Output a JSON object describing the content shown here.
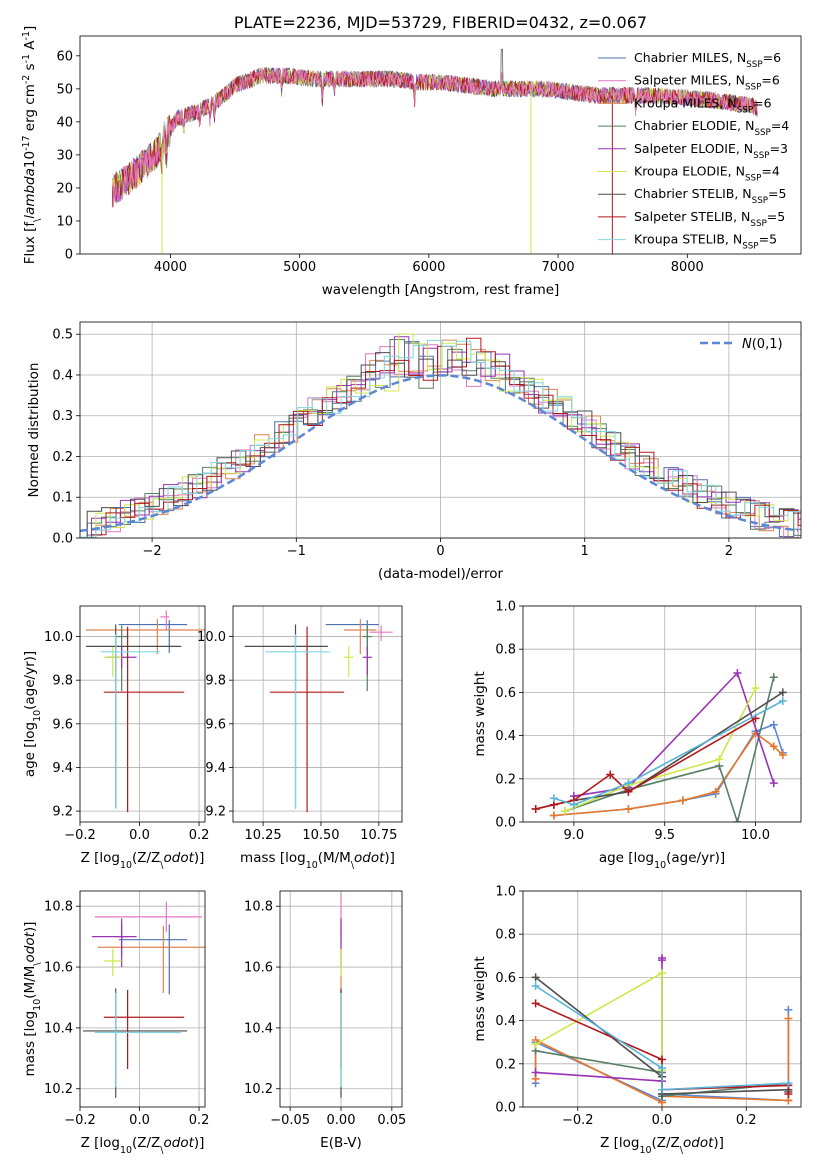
{
  "colors": {
    "Chabrier MILES": "#4c72b0",
    "Salpeter MILES": "#e377c2",
    "Kroupa MILES": "#dd8452",
    "Chabrier ELODIE": "#55825f",
    "Salpeter ELODIE": "#9a32b5",
    "Kroupa ELODIE": "#cde84a",
    "Chabrier STELIB": "#4d4d4d",
    "Salpeter STELIB": "#b2181b",
    "Kroupa STELIB": "#7fd6e0",
    "mc_blue": "#5b87d6",
    "mc_orange": "#e8772a",
    "mc_green": "#587f66",
    "mc_cyan": "#59b3d9"
  },
  "chart_data": [
    {
      "id": "spectrum",
      "type": "line",
      "title": "PLATE=2236, MJD=53729, FIBERID=0432, z=0.067",
      "xlabel": "wavelength [Angstrom, rest frame]",
      "ylabel": "Flux [f$_\\lambda$10$^{-17}$ erg cm$^{-2}$ s$^{-1}$ A$^{-1}$]",
      "xlim": [
        3300,
        8880
      ],
      "ylim": [
        0,
        66
      ],
      "xticks": [
        "4000",
        "5000",
        "6000",
        "7000",
        "8000"
      ],
      "yticks": [
        "0",
        "10",
        "20",
        "30",
        "40",
        "50",
        "60"
      ],
      "grid": false,
      "legend_position": "top-right",
      "continuum": {
        "x": [
          3550,
          3650,
          3800,
          3880,
          3950,
          4050,
          4200,
          4350,
          4500,
          4700,
          4900,
          5100,
          5300,
          5500,
          5700,
          5900,
          6100,
          6300,
          6500,
          6700,
          6900,
          7100,
          7300,
          7500,
          7700,
          7900,
          8100,
          8300,
          8500,
          8540
        ],
        "y": [
          19,
          22,
          27,
          30,
          35,
          41,
          43,
          46,
          51,
          54,
          54,
          53,
          53,
          53,
          53,
          52,
          52,
          51,
          50,
          50,
          50,
          49,
          48,
          48,
          48,
          47.5,
          47,
          46,
          45,
          44
        ]
      },
      "series": [
        {
          "name": "Chabrier MILES, N$_{SSP}$=6"
        },
        {
          "name": "Salpeter MILES, N$_{SSP}$=6"
        },
        {
          "name": "Kroupa MILES, N$_{SSP}$=6"
        },
        {
          "name": "Chabrier ELODIE, N$_{SSP}$=4"
        },
        {
          "name": "Salpeter ELODIE, N$_{SSP}$=3"
        },
        {
          "name": "Kroupa ELODIE, N$_{SSP}$=4"
        },
        {
          "name": "Chabrier STELIB, N$_{SSP}$=5"
        },
        {
          "name": "Salpeter STELIB, N$_{SSP}$=5"
        },
        {
          "name": "Kroupa STELIB, N$_{SSP}$=5"
        }
      ]
    },
    {
      "id": "residuals",
      "type": "histogram",
      "xlabel": "(data-model)/error",
      "ylabel": "Normed distribution",
      "xlim": [
        -2.5,
        2.5
      ],
      "ylim": [
        0,
        0.53
      ],
      "xticks": [
        "−2",
        "−1",
        "0",
        "1",
        "2"
      ],
      "yticks": [
        "0.0",
        "0.1",
        "0.2",
        "0.3",
        "0.4",
        "0.5"
      ],
      "grid": true,
      "legend": "$\\mathcal{N}(0,1)$",
      "legend_position": "top-right",
      "bin_width": 0.1
    },
    {
      "id": "age_vs_Z",
      "type": "errorbar",
      "xlabel": "Z [log$_{10}$(Z/Z$_\\odot$)]",
      "ylabel": "age  [log$_{10}$(age/yr)]",
      "xlim": [
        -0.2,
        0.22
      ],
      "ylim": [
        9.15,
        10.14
      ],
      "xticks": [
        "−0.2",
        "0.0",
        "0.2"
      ],
      "yticks": [
        "9.2",
        "9.4",
        "9.6",
        "9.8",
        "10.0"
      ],
      "grid": true,
      "points": [
        {
          "series": "Chabrier MILES",
          "x": 0.1,
          "xerr": [
            0.17,
            0.06
          ],
          "y": 10.055,
          "yerr": [
            0.13,
            0.02
          ]
        },
        {
          "series": "Salpeter MILES",
          "x": 0.09,
          "xerr": [
            0.02,
            0.01
          ],
          "y": 10.09,
          "yerr": [
            0.06,
            0.03
          ]
        },
        {
          "series": "Kroupa MILES",
          "x": 0.06,
          "xerr": [
            0.24,
            0.16
          ],
          "y": 10.03,
          "yerr": [
            0.11,
            0.05
          ]
        },
        {
          "series": "Chabrier ELODIE",
          "x": -0.06,
          "xerr": [
            0.02,
            0.02
          ],
          "y": 10.0,
          "yerr": [
            0.25,
            0.05
          ]
        },
        {
          "series": "Salpeter ELODIE",
          "x": -0.06,
          "xerr": [
            0.05,
            0.05
          ],
          "y": 9.905,
          "yerr": [
            0.05,
            0.05
          ]
        },
        {
          "series": "Kroupa ELODIE",
          "x": -0.09,
          "xerr": [
            0.03,
            0.03
          ],
          "y": 9.905,
          "yerr": [
            0.09,
            0.05
          ]
        },
        {
          "series": "Chabrier STELIB",
          "x": -0.08,
          "xerr": [
            0.1,
            0.22
          ],
          "y": 9.955,
          "yerr": [
            0.74,
            0.1
          ]
        },
        {
          "series": "Salpeter STELIB",
          "x": -0.04,
          "xerr": [
            0.08,
            0.19
          ],
          "y": 9.745,
          "yerr": [
            0.55,
            0.3
          ]
        },
        {
          "series": "Kroupa STELIB",
          "x": -0.08,
          "xerr": [
            0.05,
            0.15
          ],
          "y": 9.93,
          "yerr": [
            0.72,
            0.08
          ]
        }
      ]
    },
    {
      "id": "age_vs_mass",
      "type": "errorbar",
      "xlabel": "mass [log$_{10}$(M/M$_\\odot$)]",
      "ylabel": "",
      "xlim": [
        10.12,
        10.85
      ],
      "ylim": [
        9.15,
        10.14
      ],
      "xticks": [
        "10.25",
        "10.50",
        "10.75"
      ],
      "yticks": [
        "9.2",
        "9.4",
        "9.6",
        "9.8",
        "10.0"
      ],
      "grid": true,
      "points": [
        {
          "series": "Chabrier MILES",
          "x": 10.7,
          "xerr": [
            0.18,
            0.05
          ],
          "y": 10.055,
          "yerr": [
            0.13,
            0.02
          ]
        },
        {
          "series": "Salpeter MILES",
          "x": 10.76,
          "xerr": [
            0.05,
            0.05
          ],
          "y": 10.02,
          "yerr": [
            0.04,
            0.03
          ]
        },
        {
          "series": "Kroupa MILES",
          "x": 10.67,
          "xerr": [
            0.07,
            0.07
          ],
          "y": 10.03,
          "yerr": [
            0.11,
            0.05
          ]
        },
        {
          "series": "Chabrier ELODIE",
          "x": 10.7,
          "xerr": [
            0.02,
            0.02
          ],
          "y": 10.0,
          "yerr": [
            0.25,
            0.05
          ]
        },
        {
          "series": "Salpeter ELODIE",
          "x": 10.7,
          "xerr": [
            0.02,
            0.02
          ],
          "y": 9.905,
          "yerr": [
            0.08,
            0.05
          ]
        },
        {
          "series": "Kroupa ELODIE",
          "x": 10.62,
          "xerr": [
            0.02,
            0.02
          ],
          "y": 9.905,
          "yerr": [
            0.09,
            0.05
          ]
        },
        {
          "series": "Chabrier STELIB",
          "x": 10.39,
          "xerr": [
            0.22,
            0.14
          ],
          "y": 9.955,
          "yerr": [
            0.74,
            0.1
          ]
        },
        {
          "series": "Salpeter STELIB",
          "x": 10.44,
          "xerr": [
            0.16,
            0.16
          ],
          "y": 9.745,
          "yerr": [
            0.55,
            0.3
          ]
        },
        {
          "series": "Kroupa STELIB",
          "x": 10.39,
          "xerr": [
            0.13,
            0.15
          ],
          "y": 9.93,
          "yerr": [
            0.72,
            0.08
          ]
        }
      ]
    },
    {
      "id": "weight_vs_age",
      "type": "line",
      "xlabel": "age  [log$_{10}$(age/yr)]",
      "ylabel": "mass weight",
      "xlim": [
        8.72,
        10.25
      ],
      "ylim": [
        0,
        1
      ],
      "xticks": [
        "9.0",
        "9.5",
        "10.0"
      ],
      "yticks": [
        "0.0",
        "0.2",
        "0.4",
        "0.6",
        "0.8",
        "1.0"
      ],
      "grid": true,
      "series": [
        {
          "color": "mc_blue",
          "x": [
            8.89,
            9.3,
            9.6,
            9.78,
            10.0,
            10.1,
            10.15
          ],
          "y": [
            0.03,
            0.06,
            0.1,
            0.13,
            0.42,
            0.45,
            0.32
          ]
        },
        {
          "color": "mc_orange",
          "x": [
            8.89,
            9.3,
            9.6,
            9.78,
            10.0,
            10.1,
            10.15
          ],
          "y": [
            0.03,
            0.06,
            0.1,
            0.14,
            0.41,
            0.35,
            0.31
          ]
        },
        {
          "color": "mc_green",
          "x": [
            8.95,
            9.3,
            9.8,
            9.9,
            10.1
          ],
          "y": [
            0.05,
            0.15,
            0.26,
            0.0,
            0.67
          ]
        },
        {
          "color": "Salpeter ELODIE",
          "x": [
            9.0,
            9.3,
            9.9,
            10.1
          ],
          "y": [
            0.12,
            0.16,
            0.69,
            0.18
          ]
        },
        {
          "color": "Kroupa ELODIE",
          "x": [
            8.95,
            9.3,
            9.8,
            10.0
          ],
          "y": [
            0.05,
            0.17,
            0.29,
            0.62
          ]
        },
        {
          "color": "Chabrier STELIB",
          "x": [
            8.79,
            8.89,
            9.0,
            9.3,
            10.15
          ],
          "y": [
            0.06,
            0.08,
            0.1,
            0.14,
            0.6
          ]
        },
        {
          "color": "Salpeter STELIB",
          "x": [
            8.79,
            8.89,
            9.0,
            9.2,
            9.3,
            10.0
          ],
          "y": [
            0.06,
            0.08,
            0.1,
            0.22,
            0.14,
            0.48
          ]
        },
        {
          "color": "mc_cyan",
          "x": [
            8.89,
            9.0,
            9.3,
            10.15
          ],
          "y": [
            0.11,
            0.08,
            0.18,
            0.56
          ]
        }
      ]
    },
    {
      "id": "mass_vs_Z",
      "type": "errorbar",
      "xlabel": "Z [log$_{10}$(Z/Z$_\\odot$)]",
      "ylabel": "mass [log$_{10}$(M/M$_\\odot$)]",
      "xlim": [
        -0.2,
        0.22
      ],
      "ylim": [
        10.14,
        10.85
      ],
      "xticks": [
        "−0.2",
        "0.0",
        "0.2"
      ],
      "yticks": [
        "10.2",
        "10.4",
        "10.6",
        "10.8"
      ],
      "grid": true,
      "points": [
        {
          "series": "Chabrier MILES",
          "x": 0.1,
          "xerr": [
            0.17,
            0.06
          ],
          "y": 10.69,
          "yerr": [
            0.18,
            0.05
          ]
        },
        {
          "series": "Salpeter MILES",
          "x": 0.09,
          "xerr": [
            0.24,
            0.12
          ],
          "y": 10.765,
          "yerr": [
            0.05,
            0.05
          ]
        },
        {
          "series": "Kroupa MILES",
          "x": 0.08,
          "xerr": [
            0.22,
            0.14
          ],
          "y": 10.665,
          "yerr": [
            0.15,
            0.07
          ]
        },
        {
          "series": "Chabrier ELODIE",
          "x": -0.06,
          "xerr": [
            0.02,
            0.02
          ],
          "y": 10.7,
          "yerr": [
            0.06,
            0.04
          ]
        },
        {
          "series": "Salpeter ELODIE",
          "x": -0.06,
          "xerr": [
            0.1,
            0.05
          ],
          "y": 10.7,
          "yerr": [
            0.1,
            0.06
          ]
        },
        {
          "series": "Kroupa ELODIE",
          "x": -0.09,
          "xerr": [
            0.03,
            0.03
          ],
          "y": 10.62,
          "yerr": [
            0.05,
            0.04
          ]
        },
        {
          "series": "Chabrier STELIB",
          "x": -0.08,
          "xerr": [
            0.11,
            0.24
          ],
          "y": 10.39,
          "yerr": [
            0.22,
            0.14
          ]
        },
        {
          "series": "Salpeter STELIB",
          "x": -0.04,
          "xerr": [
            0.08,
            0.19
          ],
          "y": 10.435,
          "yerr": [
            0.17,
            0.09
          ]
        },
        {
          "series": "Kroupa STELIB",
          "x": -0.08,
          "xerr": [
            0.07,
            0.22
          ],
          "y": 10.385,
          "yerr": [
            0.18,
            0.13
          ]
        }
      ]
    },
    {
      "id": "mass_vs_EBV",
      "type": "errorbar",
      "xlabel": "E(B-V)",
      "ylabel": "",
      "xlim": [
        -0.06,
        0.06
      ],
      "ylim": [
        10.14,
        10.85
      ],
      "xticks": [
        "−0.05",
        "0.00",
        "0.05"
      ],
      "yticks": [
        "10.2",
        "10.4",
        "10.6",
        "10.8"
      ],
      "grid": true,
      "points": [
        {
          "series": "Salpeter MILES",
          "x": 0.0,
          "xerr": [
            0,
            0
          ],
          "y": 10.765,
          "yerr": [
            0.05,
            0.08
          ]
        },
        {
          "series": "Kroupa MILES",
          "x": 0.0,
          "xerr": [
            0,
            0
          ],
          "y": 10.665,
          "yerr": [
            0.15,
            0.07
          ]
        },
        {
          "series": "Salpeter ELODIE",
          "x": 0.0,
          "xerr": [
            0,
            0
          ],
          "y": 10.7,
          "yerr": [
            0.1,
            0.06
          ]
        },
        {
          "series": "Kroupa ELODIE",
          "x": 0.0,
          "xerr": [
            0,
            0
          ],
          "y": 10.62,
          "yerr": [
            0.05,
            0.04
          ]
        },
        {
          "series": "Salpeter STELIB",
          "x": 0.0,
          "xerr": [
            0,
            0
          ],
          "y": 10.435,
          "yerr": [
            0.17,
            0.09
          ]
        },
        {
          "series": "Chabrier STELIB",
          "x": 0.0,
          "xerr": [
            0,
            0
          ],
          "y": 10.39,
          "yerr": [
            0.22,
            0.14
          ]
        },
        {
          "series": "Kroupa STELIB",
          "x": 0.0,
          "xerr": [
            0,
            0
          ],
          "y": 10.385,
          "yerr": [
            0.18,
            0.13
          ]
        }
      ]
    },
    {
      "id": "weight_vs_Z",
      "type": "line",
      "xlabel": "Z [log$_{10}$(Z/Z$_\\odot$)]",
      "ylabel": "mass weight",
      "xlim": [
        -0.33,
        0.33
      ],
      "ylim": [
        0,
        1
      ],
      "xticks": [
        "−0.2",
        "0.0",
        "0.2"
      ],
      "yticks": [
        "0.0",
        "0.2",
        "0.4",
        "0.6",
        "0.8",
        "1.0"
      ],
      "grid": true,
      "series": [
        {
          "color": "mc_blue",
          "x": [
            -0.3,
            -0.3,
            0.0,
            0.0,
            0.3,
            0.3
          ],
          "y": [
            0.11,
            0.3,
            0.03,
            0.06,
            0.03,
            0.45
          ]
        },
        {
          "color": "mc_orange",
          "x": [
            -0.3,
            -0.3,
            0.0,
            0.0,
            0.3,
            0.3
          ],
          "y": [
            0.13,
            0.31,
            0.02,
            0.05,
            0.03,
            0.41
          ]
        },
        {
          "color": "mc_green",
          "x": [
            -0.3,
            0.0,
            0.0,
            0.3
          ],
          "y": [
            0.26,
            0.16,
            0.05,
            0.11
          ]
        },
        {
          "color": "Salpeter ELODIE",
          "x": [
            -0.3,
            0.0,
            0.0,
            0.0
          ],
          "y": [
            0.16,
            0.12,
            0.69,
            0.68
          ]
        },
        {
          "color": "Kroupa ELODIE",
          "x": [
            -0.3,
            0.0,
            0.0
          ],
          "y": [
            0.29,
            0.62,
            0.17
          ]
        },
        {
          "color": "Chabrier STELIB",
          "x": [
            -0.3,
            0.0,
            0.0,
            0.3,
            0.3
          ],
          "y": [
            0.6,
            0.14,
            0.06,
            0.08,
            0.07
          ]
        },
        {
          "color": "Salpeter STELIB",
          "x": [
            -0.3,
            0.0,
            0.0,
            0.3,
            0.3
          ],
          "y": [
            0.48,
            0.22,
            0.08,
            0.1,
            0.06
          ]
        },
        {
          "color": "mc_cyan",
          "x": [
            -0.3,
            0.0,
            0.0,
            0.3
          ],
          "y": [
            0.56,
            0.18,
            0.08,
            0.11
          ]
        }
      ]
    }
  ]
}
